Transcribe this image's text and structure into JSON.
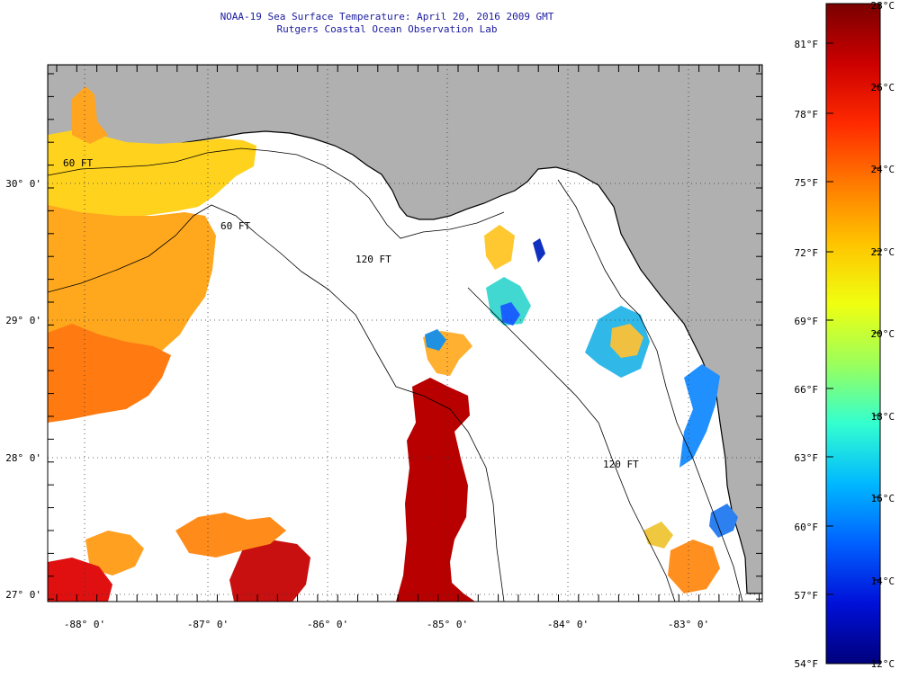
{
  "header": {
    "title": "NOAA-19 Sea Surface Temperature:  April 20, 2016 2009 GMT",
    "subtitle": "Rutgers Coastal Ocean Observation Lab"
  },
  "map": {
    "lon_range": [
      -88.35,
      -82.65
    ],
    "lat_range": [
      26.95,
      30.85
    ],
    "lon_ticks": [
      "-88° 0'",
      "-87° 0'",
      "-86° 0'",
      "-85° 0'",
      "-84° 0'",
      "-83° 0'"
    ],
    "lat_ticks": [
      "27° 0'",
      "28° 0'",
      "29° 0'",
      "30° 0'"
    ],
    "contours": [
      {
        "label": "60 FT"
      },
      {
        "label": "120 FT"
      },
      {
        "label": "60 FT"
      },
      {
        "label": "120 FT"
      }
    ],
    "colors": {
      "land": "#b0b0b0",
      "cloud": "#ffffff",
      "coast": "#000000"
    }
  },
  "colorbar": {
    "celsius_labels": [
      "28°C",
      "26°C",
      "24°C",
      "22°C",
      "20°C",
      "18°C",
      "16°C",
      "14°C",
      "12°C"
    ],
    "fahrenheit_labels": [
      "81°F",
      "78°F",
      "75°F",
      "72°F",
      "69°F",
      "66°F",
      "63°F",
      "60°F",
      "57°F",
      "54°F"
    ],
    "stops": [
      "#7a0000",
      "#cc0000",
      "#ff2a00",
      "#ff7a00",
      "#ffc400",
      "#f0ff10",
      "#9cff5a",
      "#33ffd0",
      "#00b8ff",
      "#0060ff",
      "#0010d8",
      "#00007c"
    ]
  }
}
